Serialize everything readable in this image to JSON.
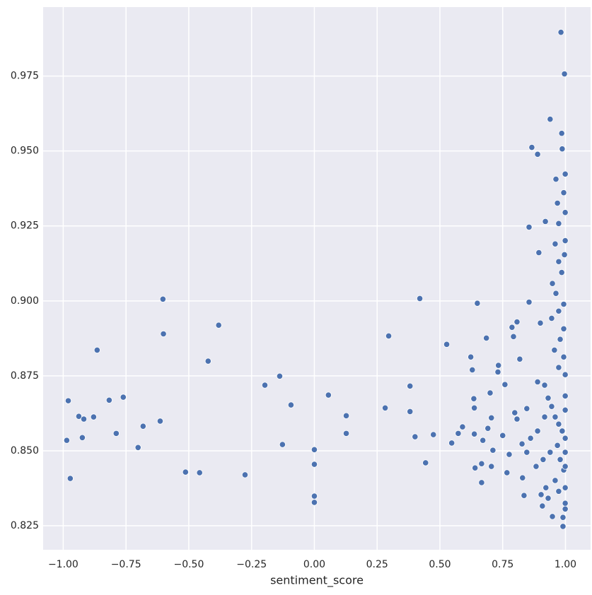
{
  "chart_data": {
    "type": "scatter",
    "xlabel": "sentiment_score",
    "color": "#4c72b0",
    "grid": true,
    "xlim": [
      -1.08,
      1.1
    ],
    "ylim": [
      0.817,
      0.998
    ],
    "xticks": [
      {
        "value": -1,
        "label": "−1.00"
      },
      {
        "value": -0.75,
        "label": "−0.75"
      },
      {
        "value": -0.5,
        "label": "−0.50"
      },
      {
        "value": -0.25,
        "label": "−0.25"
      },
      {
        "value": 0,
        "label": "0.00"
      },
      0.25,
      {
        "value": 0.5,
        "label": "0.50"
      },
      0.75,
      {
        "value": 1,
        "label": "1.00"
      }
    ],
    "yticks": [
      0.825,
      {
        "value": 0.85,
        "label": "0.850"
      },
      0.875,
      {
        "value": 0.9,
        "label": "0.900"
      },
      0.925,
      {
        "value": 0.95,
        "label": "0.950"
      },
      0.975
    ],
    "x": [
      -0.986,
      -0.98,
      -0.972,
      -0.938,
      -0.924,
      -0.918,
      -0.879,
      -0.865,
      -0.817,
      -0.789,
      -0.761,
      -0.702,
      -0.682,
      -0.614,
      -0.603,
      -0.601,
      -0.513,
      -0.457,
      -0.423,
      -0.381,
      -0.276,
      -0.197,
      -0.138,
      -0.127,
      -0.093,
      0,
      0,
      0,
      0,
      0.056,
      0.127,
      0.127,
      0.282,
      0.296,
      0.381,
      0.381,
      0.401,
      0.42,
      0.443,
      0.474,
      0.527,
      0.547,
      0.573,
      0.59,
      0.623,
      0.629,
      0.635,
      0.637,
      0.637,
      0.64,
      0.649,
      0.666,
      0.666,
      0.671,
      0.685,
      0.691,
      0.7,
      0.705,
      0.705,
      0.711,
      0.731,
      0.733,
      0.75,
      0.759,
      0.767,
      0.776,
      0.787,
      0.793,
      0.798,
      0.807,
      0.807,
      0.818,
      0.827,
      0.829,
      0.835,
      0.846,
      0.855,
      0.855,
      0.866,
      0.889,
      0.894,
      0.9,
      0.908,
      0.92,
      0.939,
      0.948,
      0.962,
      0.968,
      0.973,
      0.982,
      0.985,
      0.987,
      0.996,
      0.999,
      0.993,
      0.999,
      0.996,
      0.99,
      0.99,
      0.948,
      0.999,
      0.889,
      0.917,
      0.931,
      0.945,
      0.959,
      0.973,
      0.987,
      0.999,
      0.968,
      0.939,
      0.911,
      0.883,
      0.979,
      0.993,
      0.959,
      0.922,
      0.999,
      0.973,
      0.993,
      0.956,
      0.979,
      0.993,
      0.945,
      0.973,
      0.993,
      0.962,
      0.985,
      0.973,
      0.999,
      0.959,
      0.917,
      0.889,
      0.861,
      0.846,
      0.903,
      0.931,
      0.973,
      0.999,
      0.999,
      0.999,
      0.999,
      0.999,
      0.999
    ],
    "y": [
      0.8535,
      0.8667,
      0.8408,
      0.8615,
      0.8544,
      0.8606,
      0.8613,
      0.8836,
      0.8669,
      0.8558,
      0.8679,
      0.8511,
      0.8582,
      0.8599,
      0.9006,
      0.889,
      0.8429,
      0.8427,
      0.8799,
      0.8919,
      0.842,
      0.8719,
      0.8749,
      0.8521,
      0.8653,
      0.8504,
      0.8455,
      0.8349,
      0.8328,
      0.8686,
      0.8617,
      0.8558,
      0.8643,
      0.8883,
      0.8716,
      0.8631,
      0.8547,
      0.9008,
      0.846,
      0.8554,
      0.8855,
      0.8526,
      0.8558,
      0.858,
      0.8813,
      0.877,
      0.8674,
      0.8643,
      0.8556,
      0.8443,
      0.8992,
      0.8457,
      0.8394,
      0.8535,
      0.8876,
      0.8575,
      0.8693,
      0.861,
      0.8448,
      0.8502,
      0.8763,
      0.8785,
      0.8551,
      0.8721,
      0.8427,
      0.8488,
      0.8912,
      0.8881,
      0.8627,
      0.893,
      0.8606,
      0.8806,
      0.8523,
      0.841,
      0.8351,
      0.8641,
      0.9246,
      0.8996,
      0.9512,
      0.9489,
      0.9161,
      0.8926,
      0.8316,
      0.9265,
      0.9606,
      0.9058,
      0.9406,
      0.9326,
      0.9258,
      0.9896,
      0.9559,
      0.9507,
      0.9757,
      0.9423,
      0.9361,
      0.9295,
      0.9154,
      0.8248,
      0.8278,
      0.8281,
      0.8325,
      0.873,
      0.8719,
      0.8676,
      0.8648,
      0.8613,
      0.8589,
      0.8566,
      0.8542,
      0.8518,
      0.8495,
      0.8471,
      0.8448,
      0.8471,
      0.8436,
      0.8401,
      0.8377,
      0.8377,
      0.8778,
      0.8813,
      0.8836,
      0.8872,
      0.8907,
      0.8942,
      0.8966,
      0.8989,
      0.9025,
      0.9095,
      0.9131,
      0.9201,
      0.919,
      0.8613,
      0.8566,
      0.8542,
      0.8495,
      0.8354,
      0.8342,
      0.8365,
      0.8683,
      0.8754,
      0.8636,
      0.8495,
      0.8448,
      0.8306
    ]
  }
}
